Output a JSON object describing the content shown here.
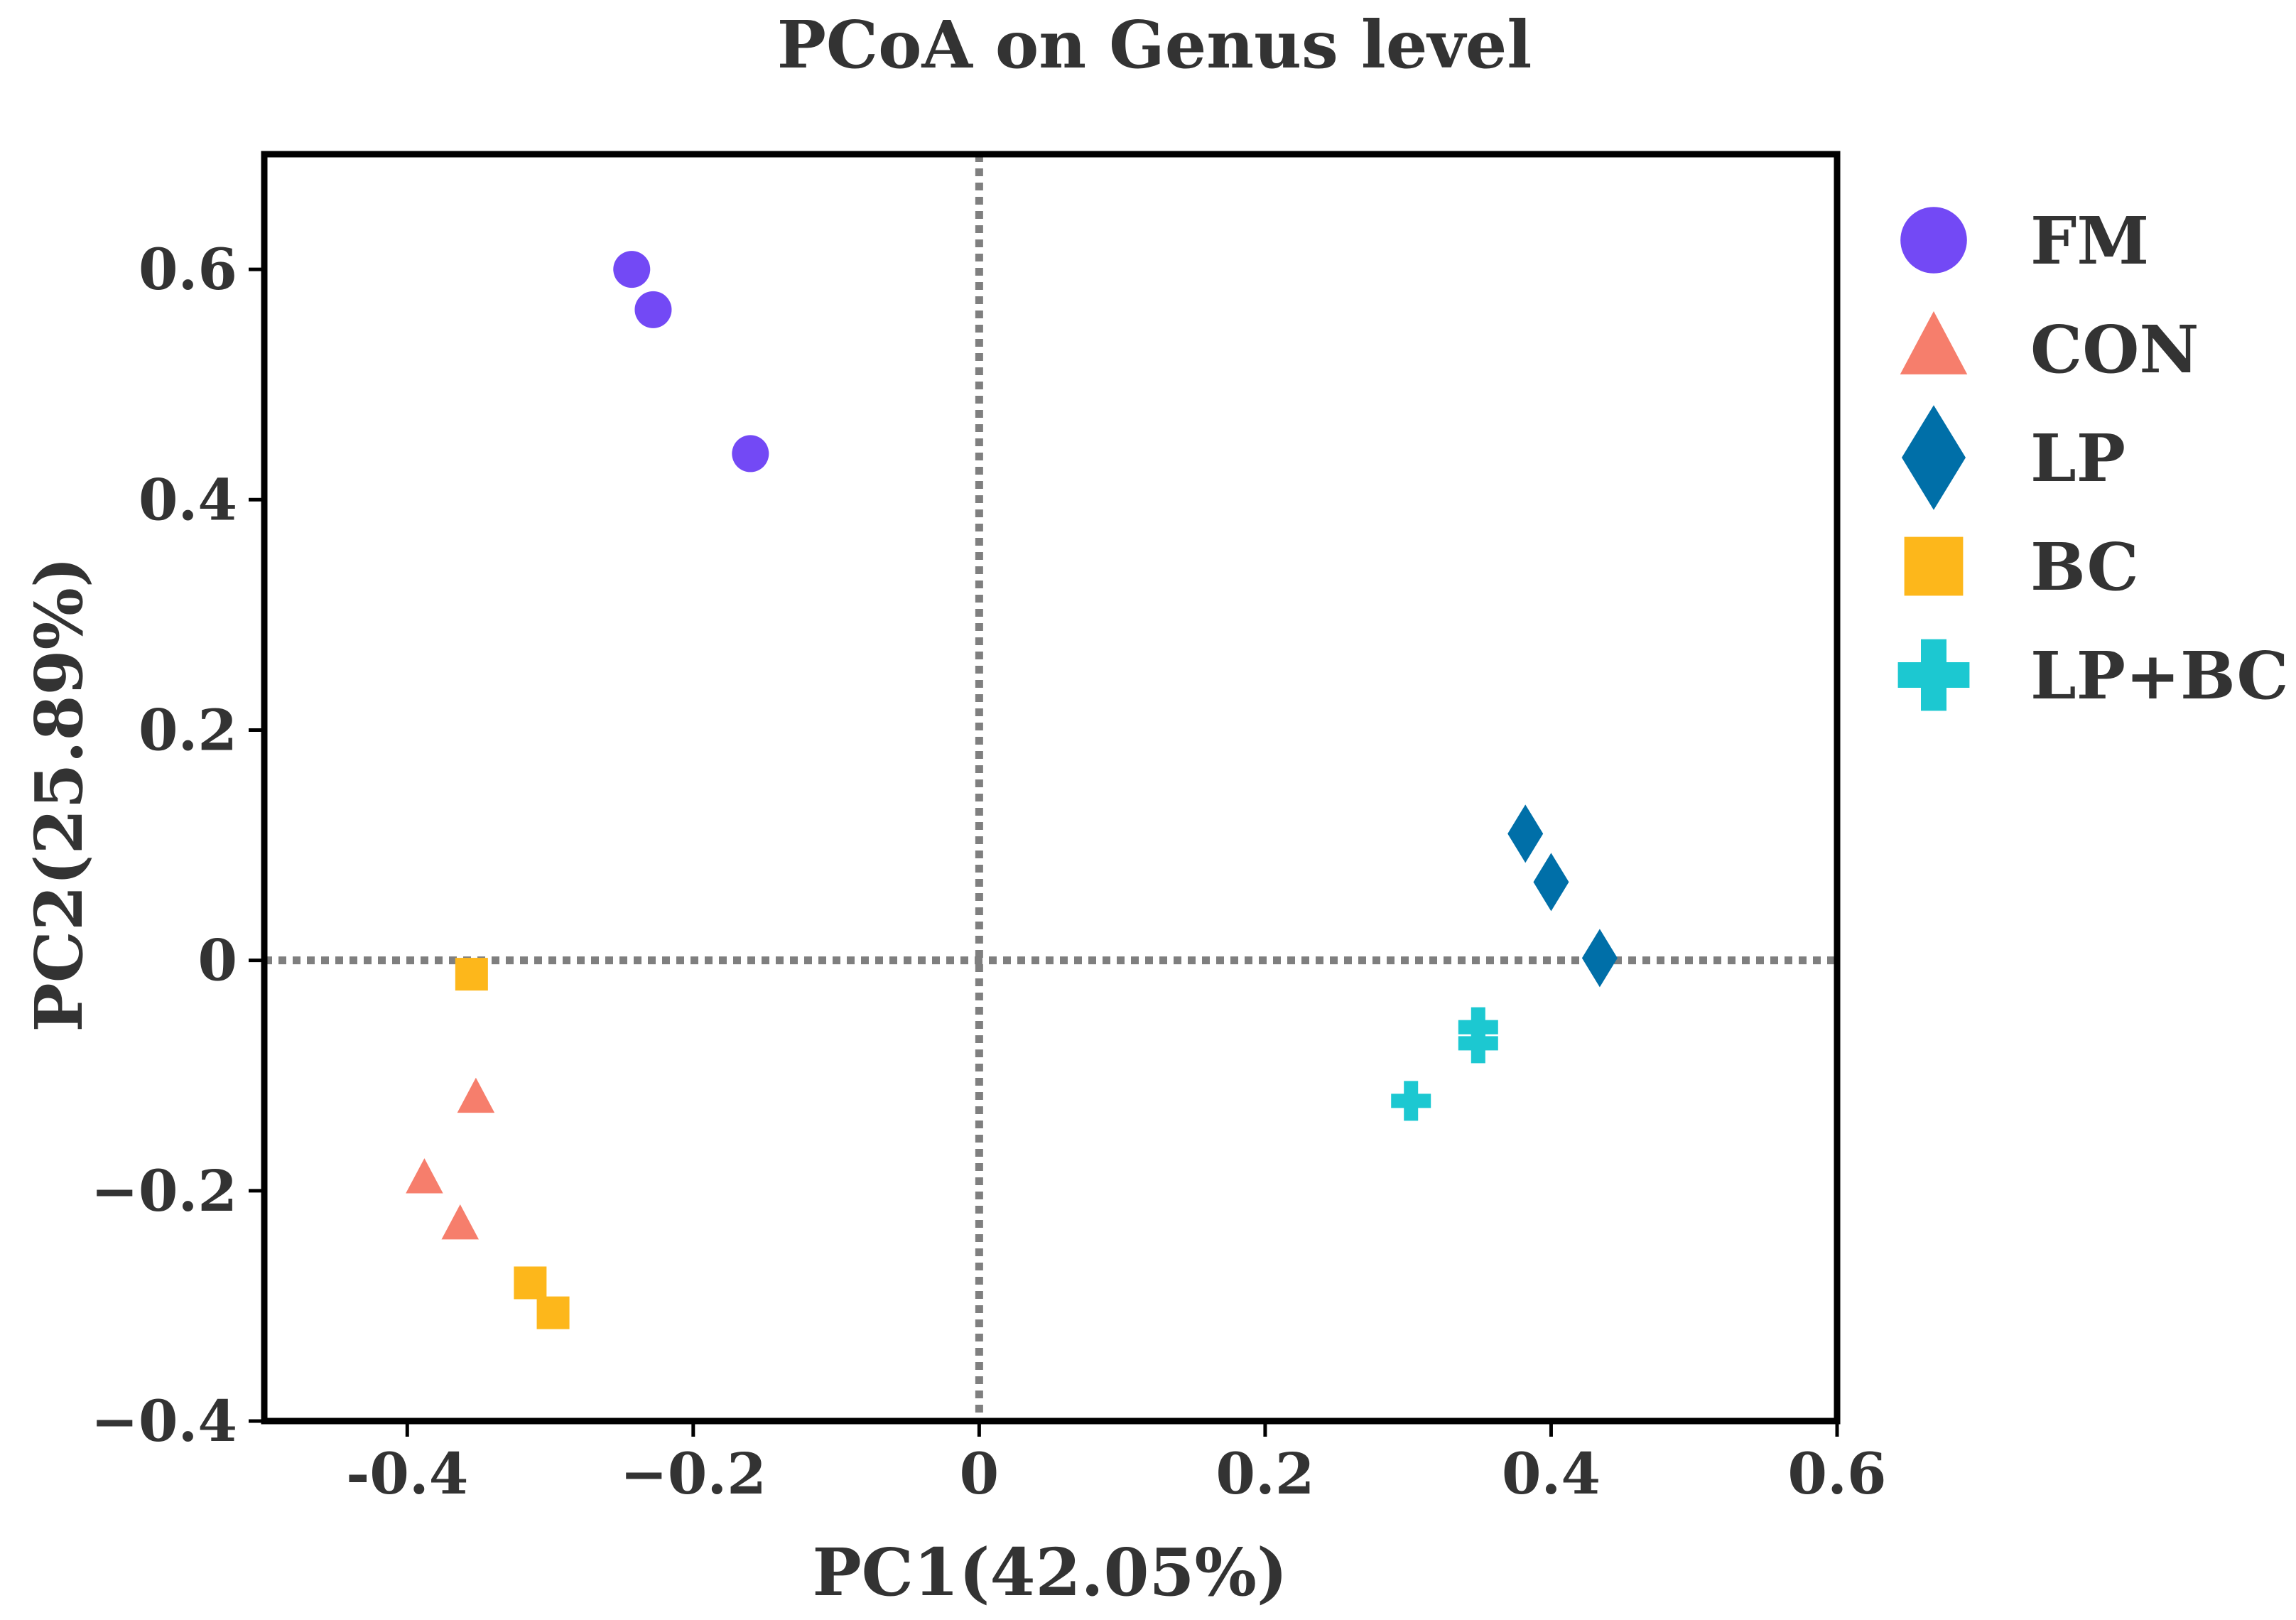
{
  "chart_data": {
    "type": "scatter",
    "title": "PCoA on Genus level",
    "xlabel": "PC1(42.05%)",
    "ylabel": "PC2(25.89%)",
    "xlim": [
      -0.5,
      0.6
    ],
    "ylim": [
      -0.4,
      0.7
    ],
    "xticks": [
      -0.4,
      -0.2,
      0,
      0.2,
      0.4,
      0.6
    ],
    "xtick_labels": [
      "-0.4",
      "−0.2",
      "0",
      "0.2",
      "0.4",
      "0.6"
    ],
    "yticks": [
      -0.4,
      -0.2,
      0,
      0.2,
      0.4,
      0.6
    ],
    "ytick_labels": [
      "−0.4",
      "−0.2",
      "0",
      "0.2",
      "0.4",
      "0.6"
    ],
    "reference_lines": {
      "x": 0,
      "y": 0,
      "style": "dotted"
    },
    "legend_position": "right",
    "series": [
      {
        "name": "FM",
        "marker": "circle",
        "color": "#7349F5",
        "points": [
          [
            -0.243,
            0.6
          ],
          [
            -0.228,
            0.565
          ],
          [
            -0.16,
            0.44
          ]
        ]
      },
      {
        "name": "CON",
        "marker": "triangle",
        "color": "#F67E6C",
        "points": [
          [
            -0.352,
            -0.12
          ],
          [
            -0.388,
            -0.19
          ],
          [
            -0.363,
            -0.23
          ]
        ]
      },
      {
        "name": "LP",
        "marker": "diamond",
        "color": "#006FA8",
        "points": [
          [
            0.382,
            0.11
          ],
          [
            0.4,
            0.068
          ],
          [
            0.434,
            0.002
          ]
        ]
      },
      {
        "name": "BC",
        "marker": "square",
        "color": "#FDB71B",
        "points": [
          [
            -0.355,
            -0.012
          ],
          [
            -0.314,
            -0.28
          ],
          [
            -0.298,
            -0.306
          ]
        ]
      },
      {
        "name": "LP+BC",
        "marker": "plus",
        "color": "#1CC8D1",
        "points": [
          [
            0.349,
            -0.058
          ],
          [
            0.349,
            -0.072
          ],
          [
            0.302,
            -0.122
          ]
        ]
      }
    ]
  }
}
